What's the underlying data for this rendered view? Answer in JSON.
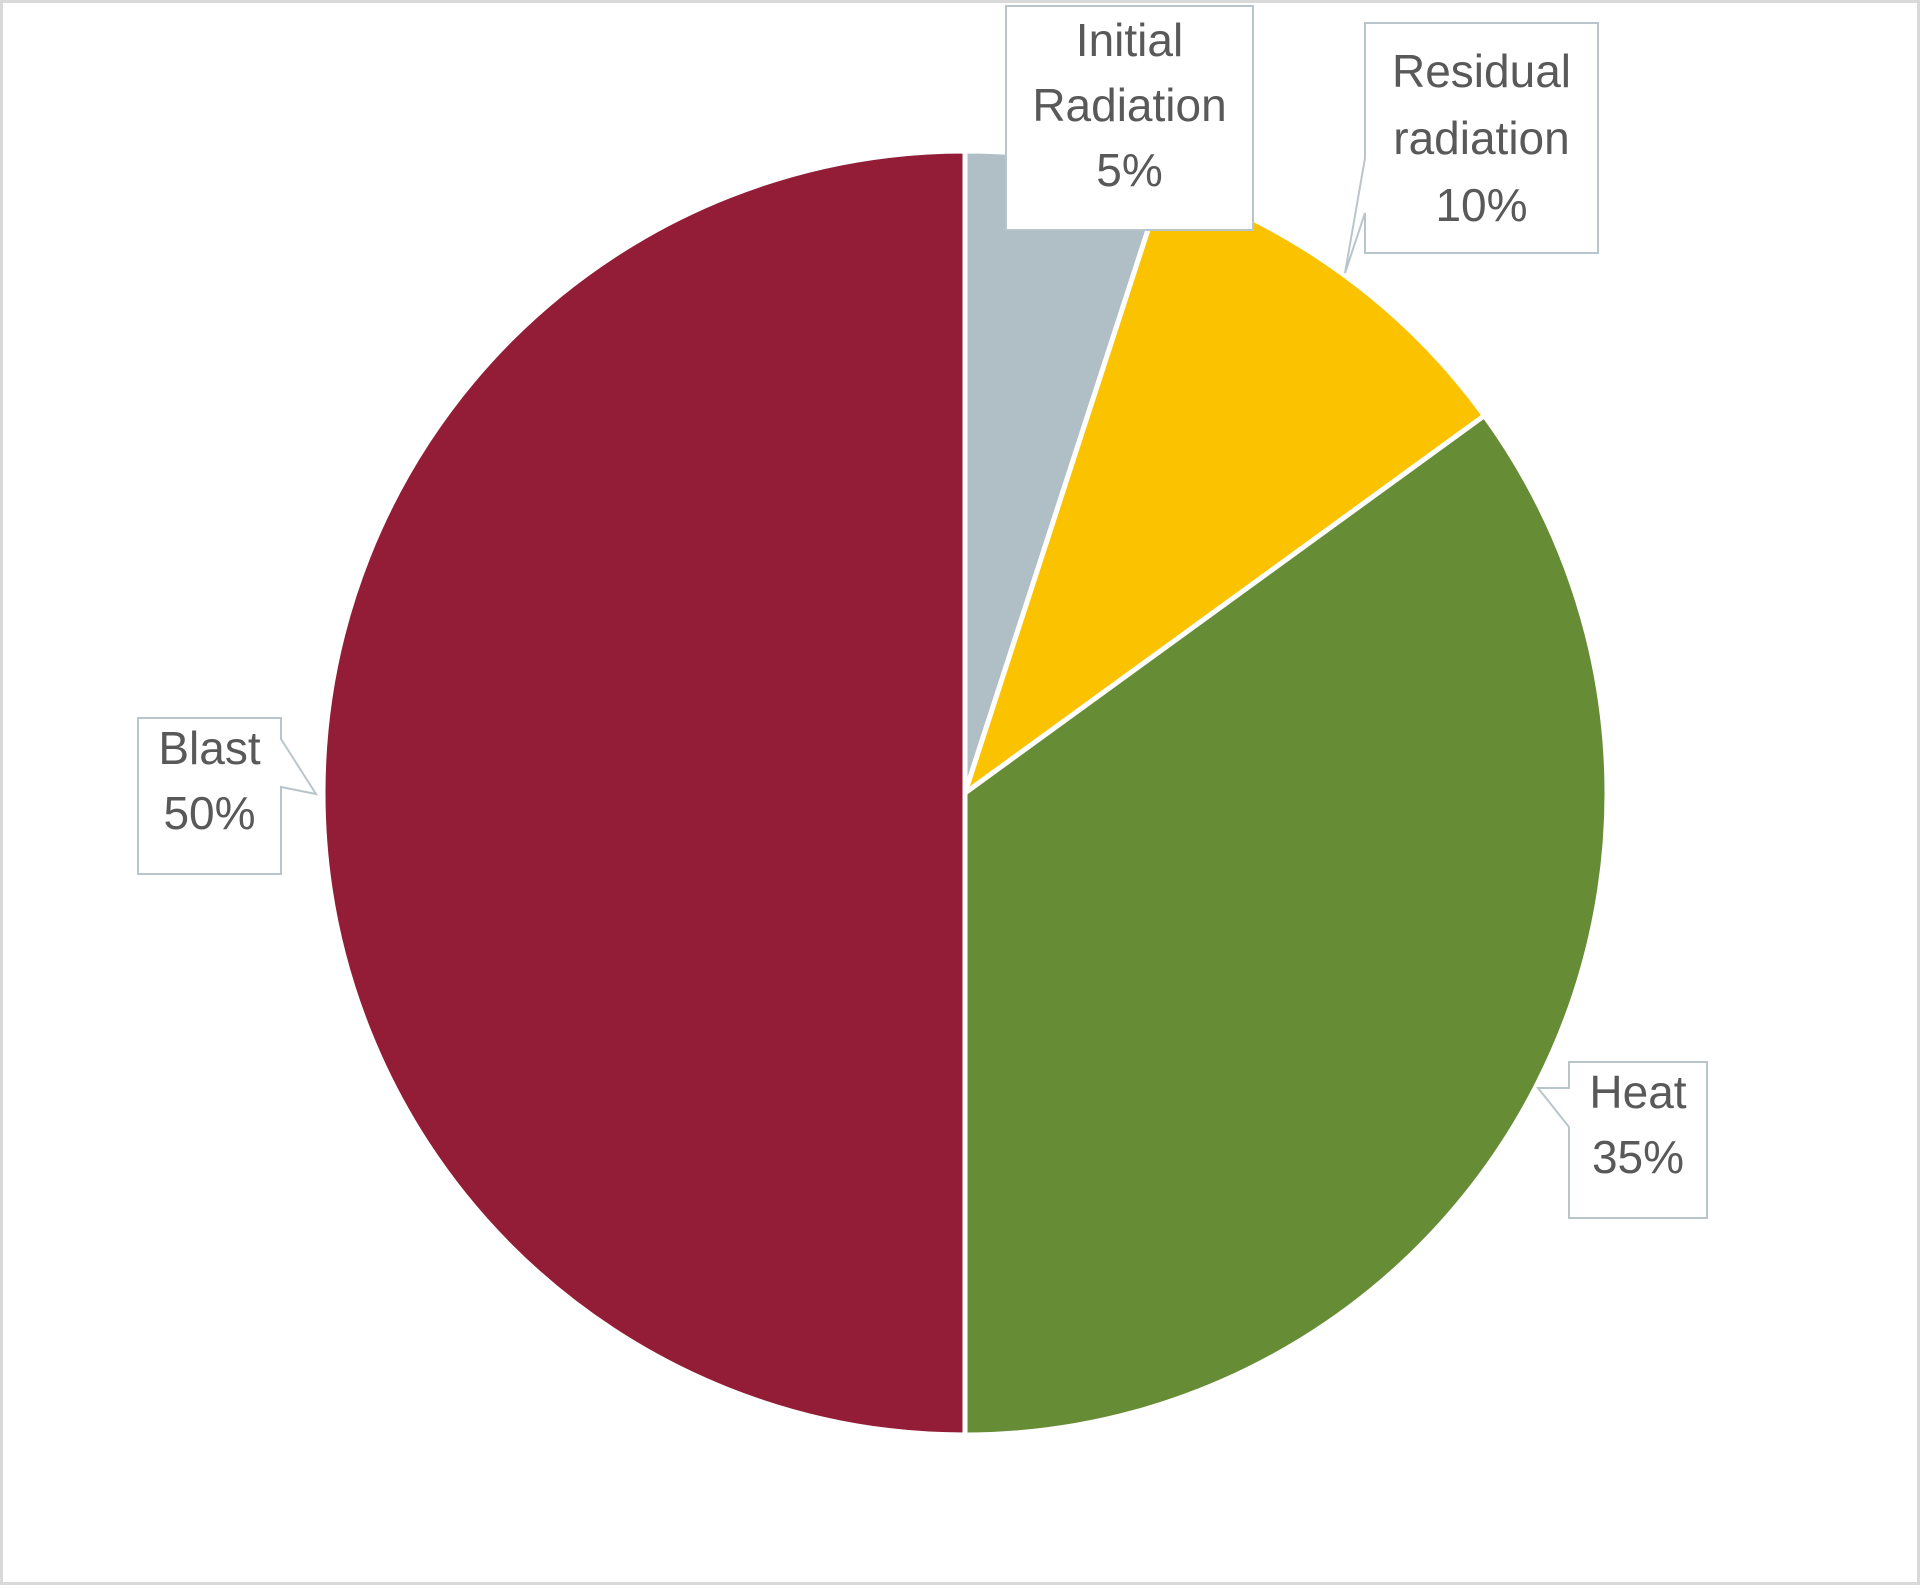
{
  "chart_data": {
    "type": "pie",
    "title": "",
    "start_angle_deg": 0,
    "direction": "clockwise",
    "categories": [
      "Initial Radiation",
      "Residual radiation",
      "Heat",
      "Blast"
    ],
    "values": [
      5,
      10,
      35,
      50
    ],
    "unit": "%",
    "colors": [
      "#B0BEC5",
      "#FBC200",
      "#678C36",
      "#931D36"
    ],
    "data_labels": [
      {
        "lines": [
          "Initial",
          "Radiation",
          "5%"
        ]
      },
      {
        "lines": [
          "Residual",
          "radiation",
          "10%"
        ]
      },
      {
        "lines": [
          "Heat",
          "35%"
        ]
      },
      {
        "lines": [
          "Blast",
          "50%"
        ]
      }
    ],
    "legend": "none",
    "grid": false
  },
  "style": {
    "frame_border": "#D9D9D9",
    "slice_separator": "#FFFFFF",
    "callout_border": "#B8C6CC",
    "callout_fill": "#FFFFFF",
    "label_color": "#595959"
  }
}
